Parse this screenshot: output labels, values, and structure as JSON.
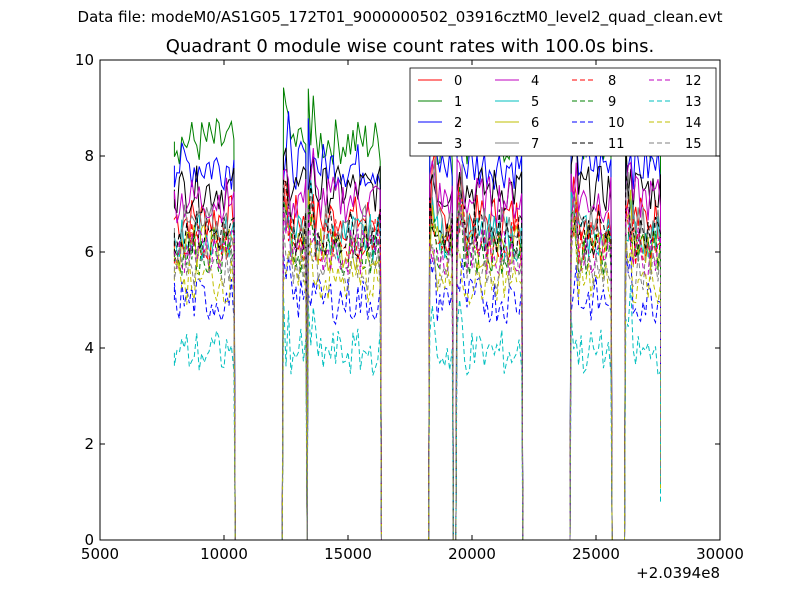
{
  "header": {
    "suptitle": "Data file: modeM0/AS1G05_172T01_9000000502_03916cztM0_level2_quad_clean.evt",
    "title": "Quadrant 0 module wise count rates with 100.0s bins."
  },
  "chart_data": {
    "type": "line",
    "title": "Quadrant 0 module wise count rates with 100.0s bins.",
    "xlabel": "",
    "ylabel": "",
    "x_offset_label": "+2.0394e8",
    "xlim": [
      5000,
      30000
    ],
    "ylim": [
      0,
      10
    ],
    "xticks": [
      5000,
      10000,
      15000,
      20000,
      25000,
      30000
    ],
    "yticks": [
      0,
      2,
      4,
      6,
      8,
      10
    ],
    "grid": false,
    "legend_position": "top-right",
    "active_segments": [
      [
        8000,
        10400
      ],
      [
        12400,
        13300
      ],
      [
        13400,
        16300
      ],
      [
        18300,
        19200
      ],
      [
        19400,
        22000
      ],
      [
        24000,
        25600
      ],
      [
        26200,
        27600
      ]
    ],
    "series": [
      {
        "name": "0",
        "color": "#ff0000",
        "dash": "solid",
        "mean": 6.7
      },
      {
        "name": "1",
        "color": "#008000",
        "dash": "solid",
        "mean": 8.3
      },
      {
        "name": "2",
        "color": "#0000ff",
        "dash": "solid",
        "mean": 7.8
      },
      {
        "name": "3",
        "color": "#000000",
        "dash": "solid",
        "mean": 7.3
      },
      {
        "name": "4",
        "color": "#bf00bf",
        "dash": "solid",
        "mean": 7.1
      },
      {
        "name": "5",
        "color": "#00bfbf",
        "dash": "solid",
        "mean": 6.3
      },
      {
        "name": "6",
        "color": "#bfbf00",
        "dash": "solid",
        "mean": 6.1
      },
      {
        "name": "7",
        "color": "#808080",
        "dash": "solid",
        "mean": 6.5
      },
      {
        "name": "8",
        "color": "#ff0000",
        "dash": "dashed",
        "mean": 6.2
      },
      {
        "name": "9",
        "color": "#008000",
        "dash": "dashed",
        "mean": 6.0
      },
      {
        "name": "10",
        "color": "#0000ff",
        "dash": "dashed",
        "mean": 5.0
      },
      {
        "name": "11",
        "color": "#000000",
        "dash": "dashed",
        "mean": 6.4
      },
      {
        "name": "12",
        "color": "#bf00bf",
        "dash": "dashed",
        "mean": 6.0
      },
      {
        "name": "13",
        "color": "#00bfbf",
        "dash": "dashed",
        "mean": 3.9
      },
      {
        "name": "14",
        "color": "#bfbf00",
        "dash": "dashed",
        "mean": 5.4
      },
      {
        "name": "15",
        "color": "#808080",
        "dash": "dashed",
        "mean": 5.7
      }
    ]
  }
}
